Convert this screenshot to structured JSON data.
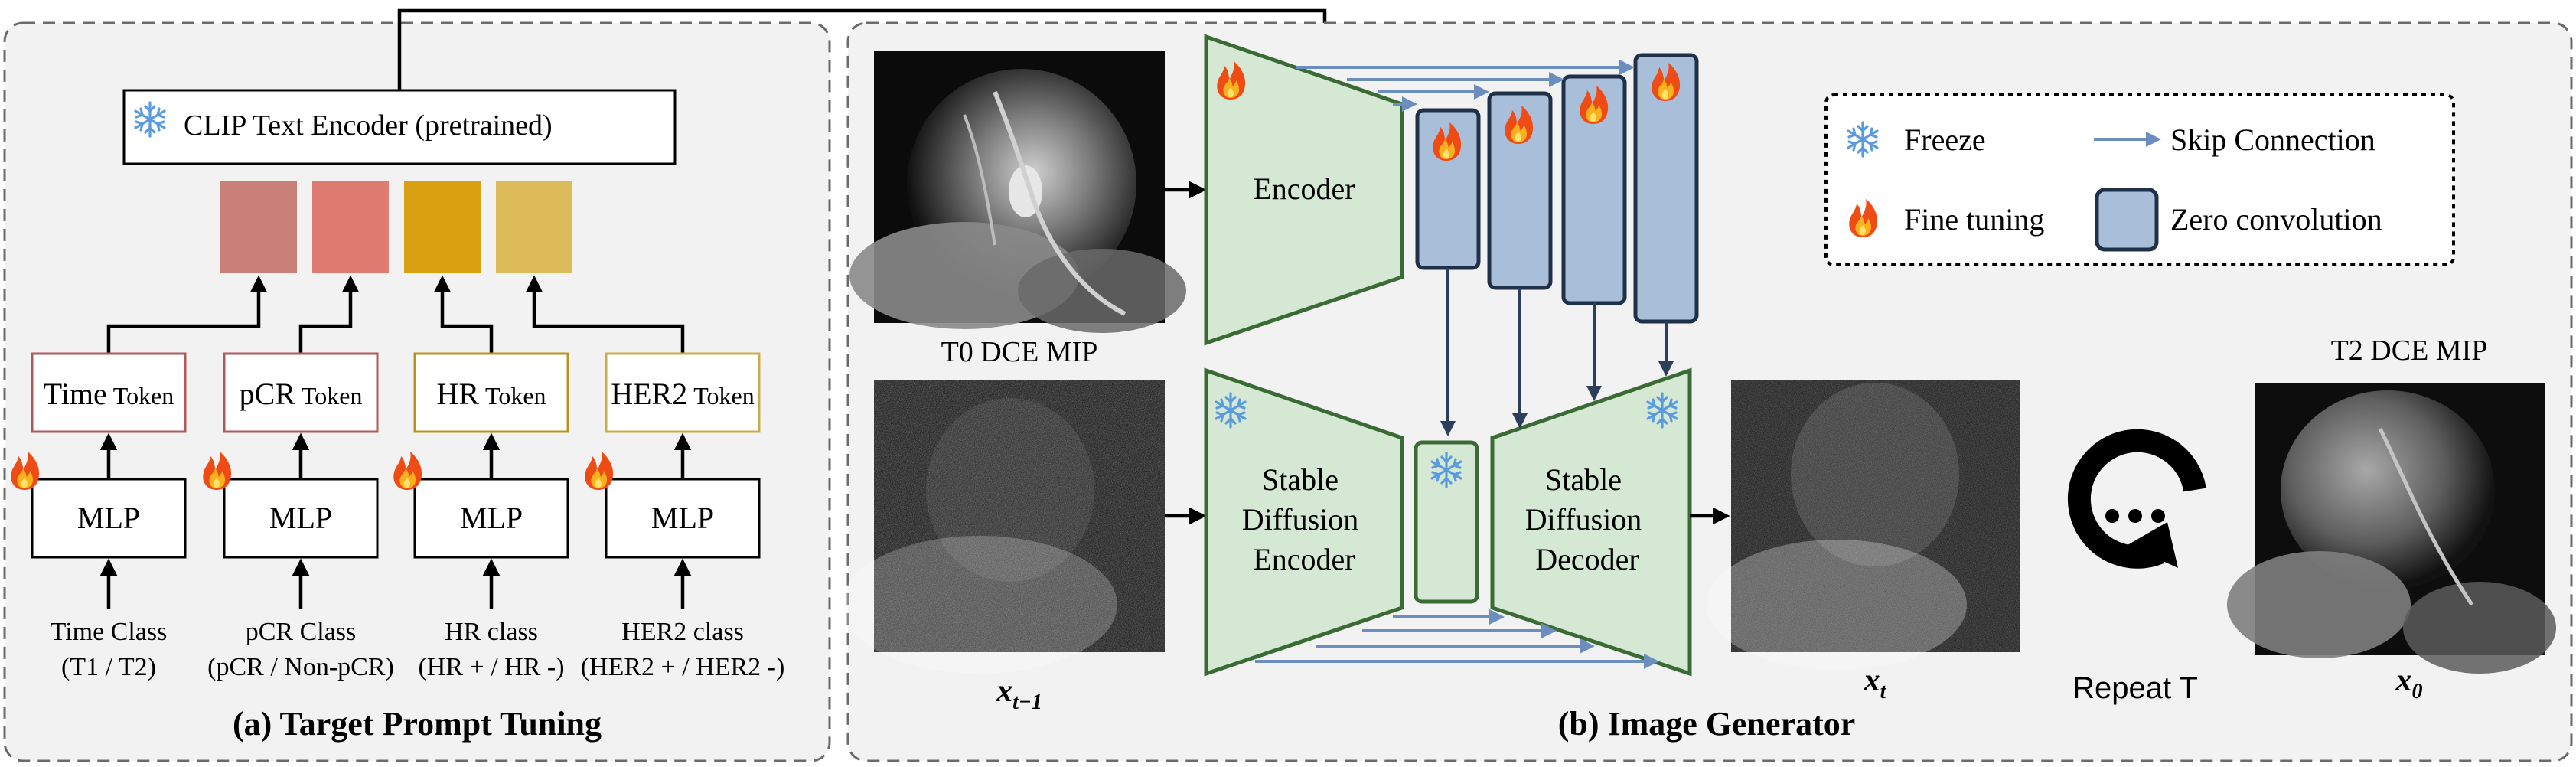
{
  "panel_a": {
    "caption": "(a) Target Prompt Tuning",
    "clip_label": "CLIP Text Encoder (pretrained)",
    "mlp_label": "MLP",
    "columns": [
      {
        "token_main": "Time",
        "token_small": "Token",
        "class_line1": "Time Class",
        "class_line2": "(T1 / T2)",
        "token_color": "#c98076",
        "border_color": "#b05a5a"
      },
      {
        "token_main": "pCR",
        "token_small": "Token",
        "class_line1": "pCR Class",
        "class_line2": "(pCR / Non-pCR)",
        "token_color": "#e07b72",
        "border_color": "#b05a5a"
      },
      {
        "token_main": "HR",
        "token_small": "Token",
        "class_line1": "HR  class",
        "class_line2": "(HR + / HR -)",
        "token_color": "#d9a112",
        "border_color": "#b8941f"
      },
      {
        "token_main": "HER2",
        "token_small": "Token",
        "class_line1": "HER2  class",
        "class_line2": "(HER2 + / HER2 -)",
        "token_color": "#dcbb58",
        "border_color": "#c9ad4c"
      }
    ]
  },
  "panel_b": {
    "caption": "(b) Image Generator",
    "encoder_label": "Encoder",
    "sd_encoder_lines": [
      "Stable",
      "Diffusion",
      "Encoder"
    ],
    "sd_decoder_lines": [
      "Stable",
      "Diffusion",
      "Decoder"
    ],
    "t0_label": "T0 DCE MIP",
    "t2_label": "T2 DCE MIP",
    "x_prev_label": "x",
    "x_prev_sub": "t−1",
    "x_t_label": "x",
    "x_t_sub": "t",
    "x0_label": "x",
    "x0_sub": "0",
    "repeat_label": "Repeat T",
    "legend": {
      "freeze": "Freeze",
      "skip": "Skip Connection",
      "finetune": "Fine tuning",
      "zeroconv": "Zero convolution"
    }
  },
  "icons": {
    "freeze": "snowflake-icon",
    "finetune": "fire-icon",
    "repeat": "repeat-icon"
  },
  "colors": {
    "green_fill": "#d5e8d4",
    "green_stroke": "#3b6b35",
    "block_fill": "#a9bfd9",
    "block_stroke": "#1f3049",
    "skip_arrow": "#6c8ebf",
    "snow": "#5a9be0",
    "panel_bg": "#f2f2f2"
  }
}
